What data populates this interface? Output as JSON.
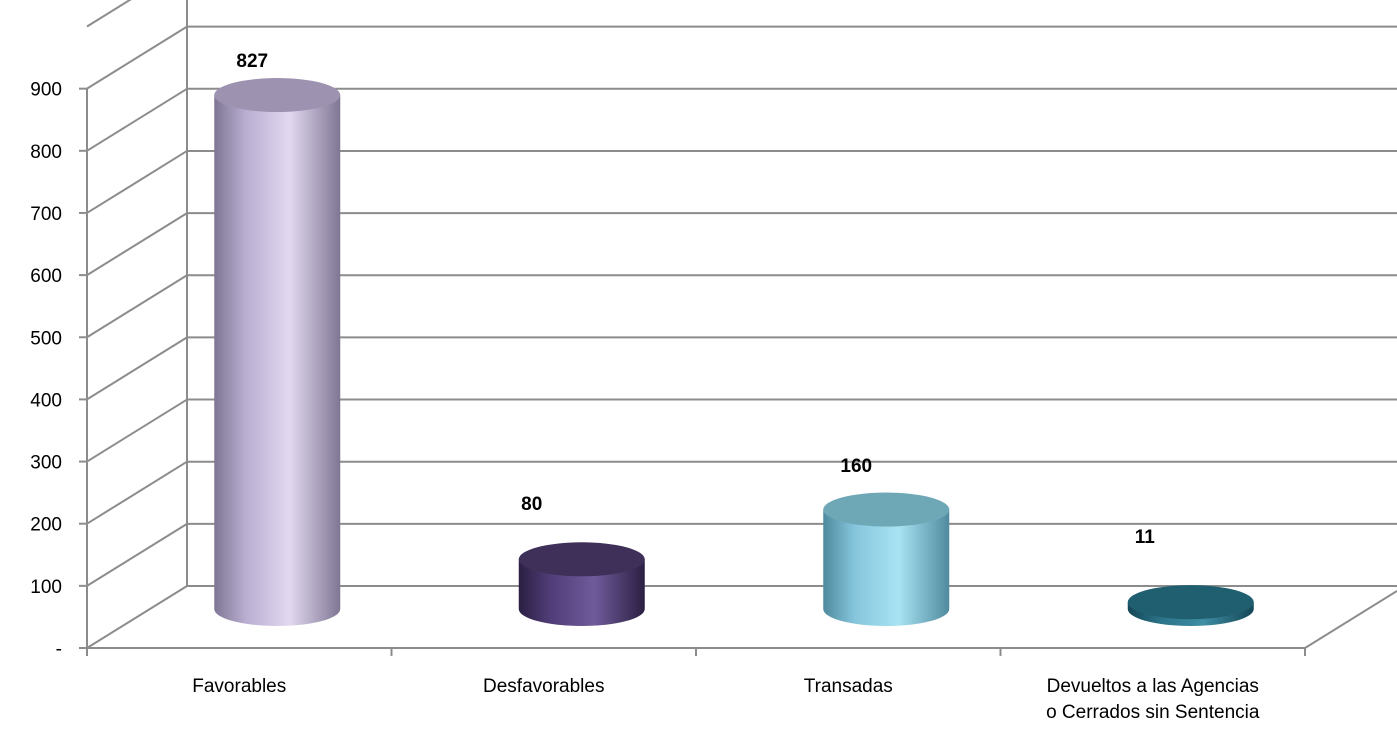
{
  "chart_data": {
    "type": "bar",
    "style": "3d-cylinder",
    "categories": [
      [
        "Favorables"
      ],
      [
        "Desfavorables"
      ],
      [
        "Transadas"
      ],
      [
        "Devueltos a las Agencias",
        "o Cerrados sin Sentencia"
      ]
    ],
    "values": [
      827,
      80,
      160,
      11
    ],
    "data_labels": [
      "827",
      "80",
      "160",
      "11"
    ],
    "yticks": [
      "-",
      "100",
      "200",
      "300",
      "400",
      "500",
      "600",
      "700",
      "800",
      "900"
    ],
    "ylim": [
      0,
      1000
    ],
    "grid": true,
    "legend": "none",
    "colors": [
      {
        "light": "#e2d8f0",
        "mid": "#b9aed0",
        "dark": "#7f7694",
        "top": "#9d92b0"
      },
      {
        "light": "#6f5b9a",
        "mid": "#503d78",
        "dark": "#2b1f42",
        "top": "#3f3059"
      },
      {
        "light": "#a8e3f3",
        "mid": "#86c6dc",
        "dark": "#4f8a9e",
        "top": "#6ea8b7"
      },
      {
        "light": "#3f8ea4",
        "mid": "#2a7186",
        "dark": "#144656",
        "top": "#205f70"
      }
    ]
  }
}
